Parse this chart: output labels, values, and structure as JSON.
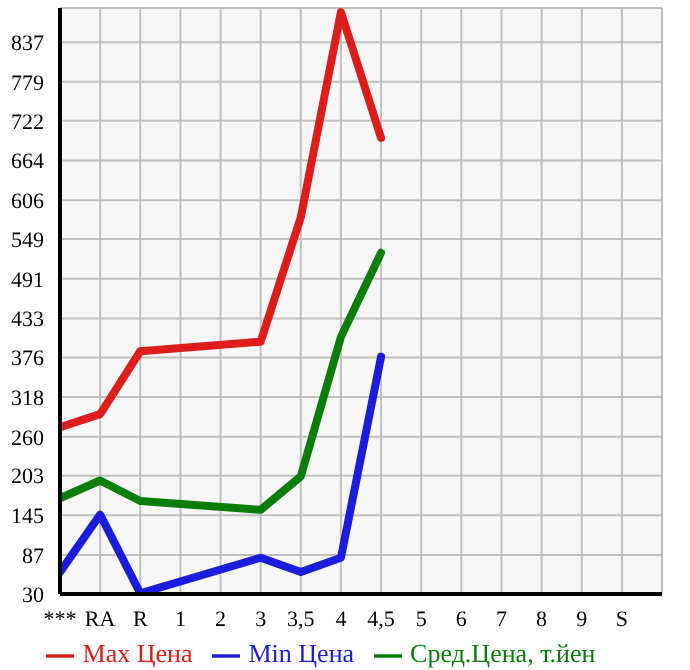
{
  "chart_data": {
    "type": "line",
    "categories": [
      "***",
      "RA",
      "R",
      "1",
      "2",
      "3",
      "3,5",
      "4",
      "4,5",
      "5",
      "6",
      "7",
      "8",
      "9",
      "S"
    ],
    "series": [
      {
        "name": "Max Цена",
        "color": "#dd1c1c",
        "values": [
          274,
          293,
          385,
          null,
          null,
          399,
          581,
          881,
          697,
          null,
          null,
          null,
          null,
          null,
          null
        ]
      },
      {
        "name": "Min Цена",
        "color": "#1c1cdd",
        "values": [
          62,
          146,
          31,
          null,
          null,
          83,
          62,
          83,
          377,
          null,
          null,
          null,
          null,
          null,
          null
        ]
      },
      {
        "name": "Сред.Цена, т.йен",
        "color": "#0a7d0a",
        "values": [
          170,
          196,
          166,
          null,
          null,
          153,
          202,
          406,
          529,
          null,
          null,
          null,
          null,
          null,
          null
        ]
      }
    ],
    "ylim": [
      30,
      887
    ],
    "yticks": [
      30,
      87,
      145,
      203,
      260,
      318,
      376,
      433,
      491,
      549,
      606,
      664,
      722,
      779,
      837
    ],
    "grid": true,
    "legend": "bottom",
    "marker": "none",
    "line_style": "solid"
  }
}
